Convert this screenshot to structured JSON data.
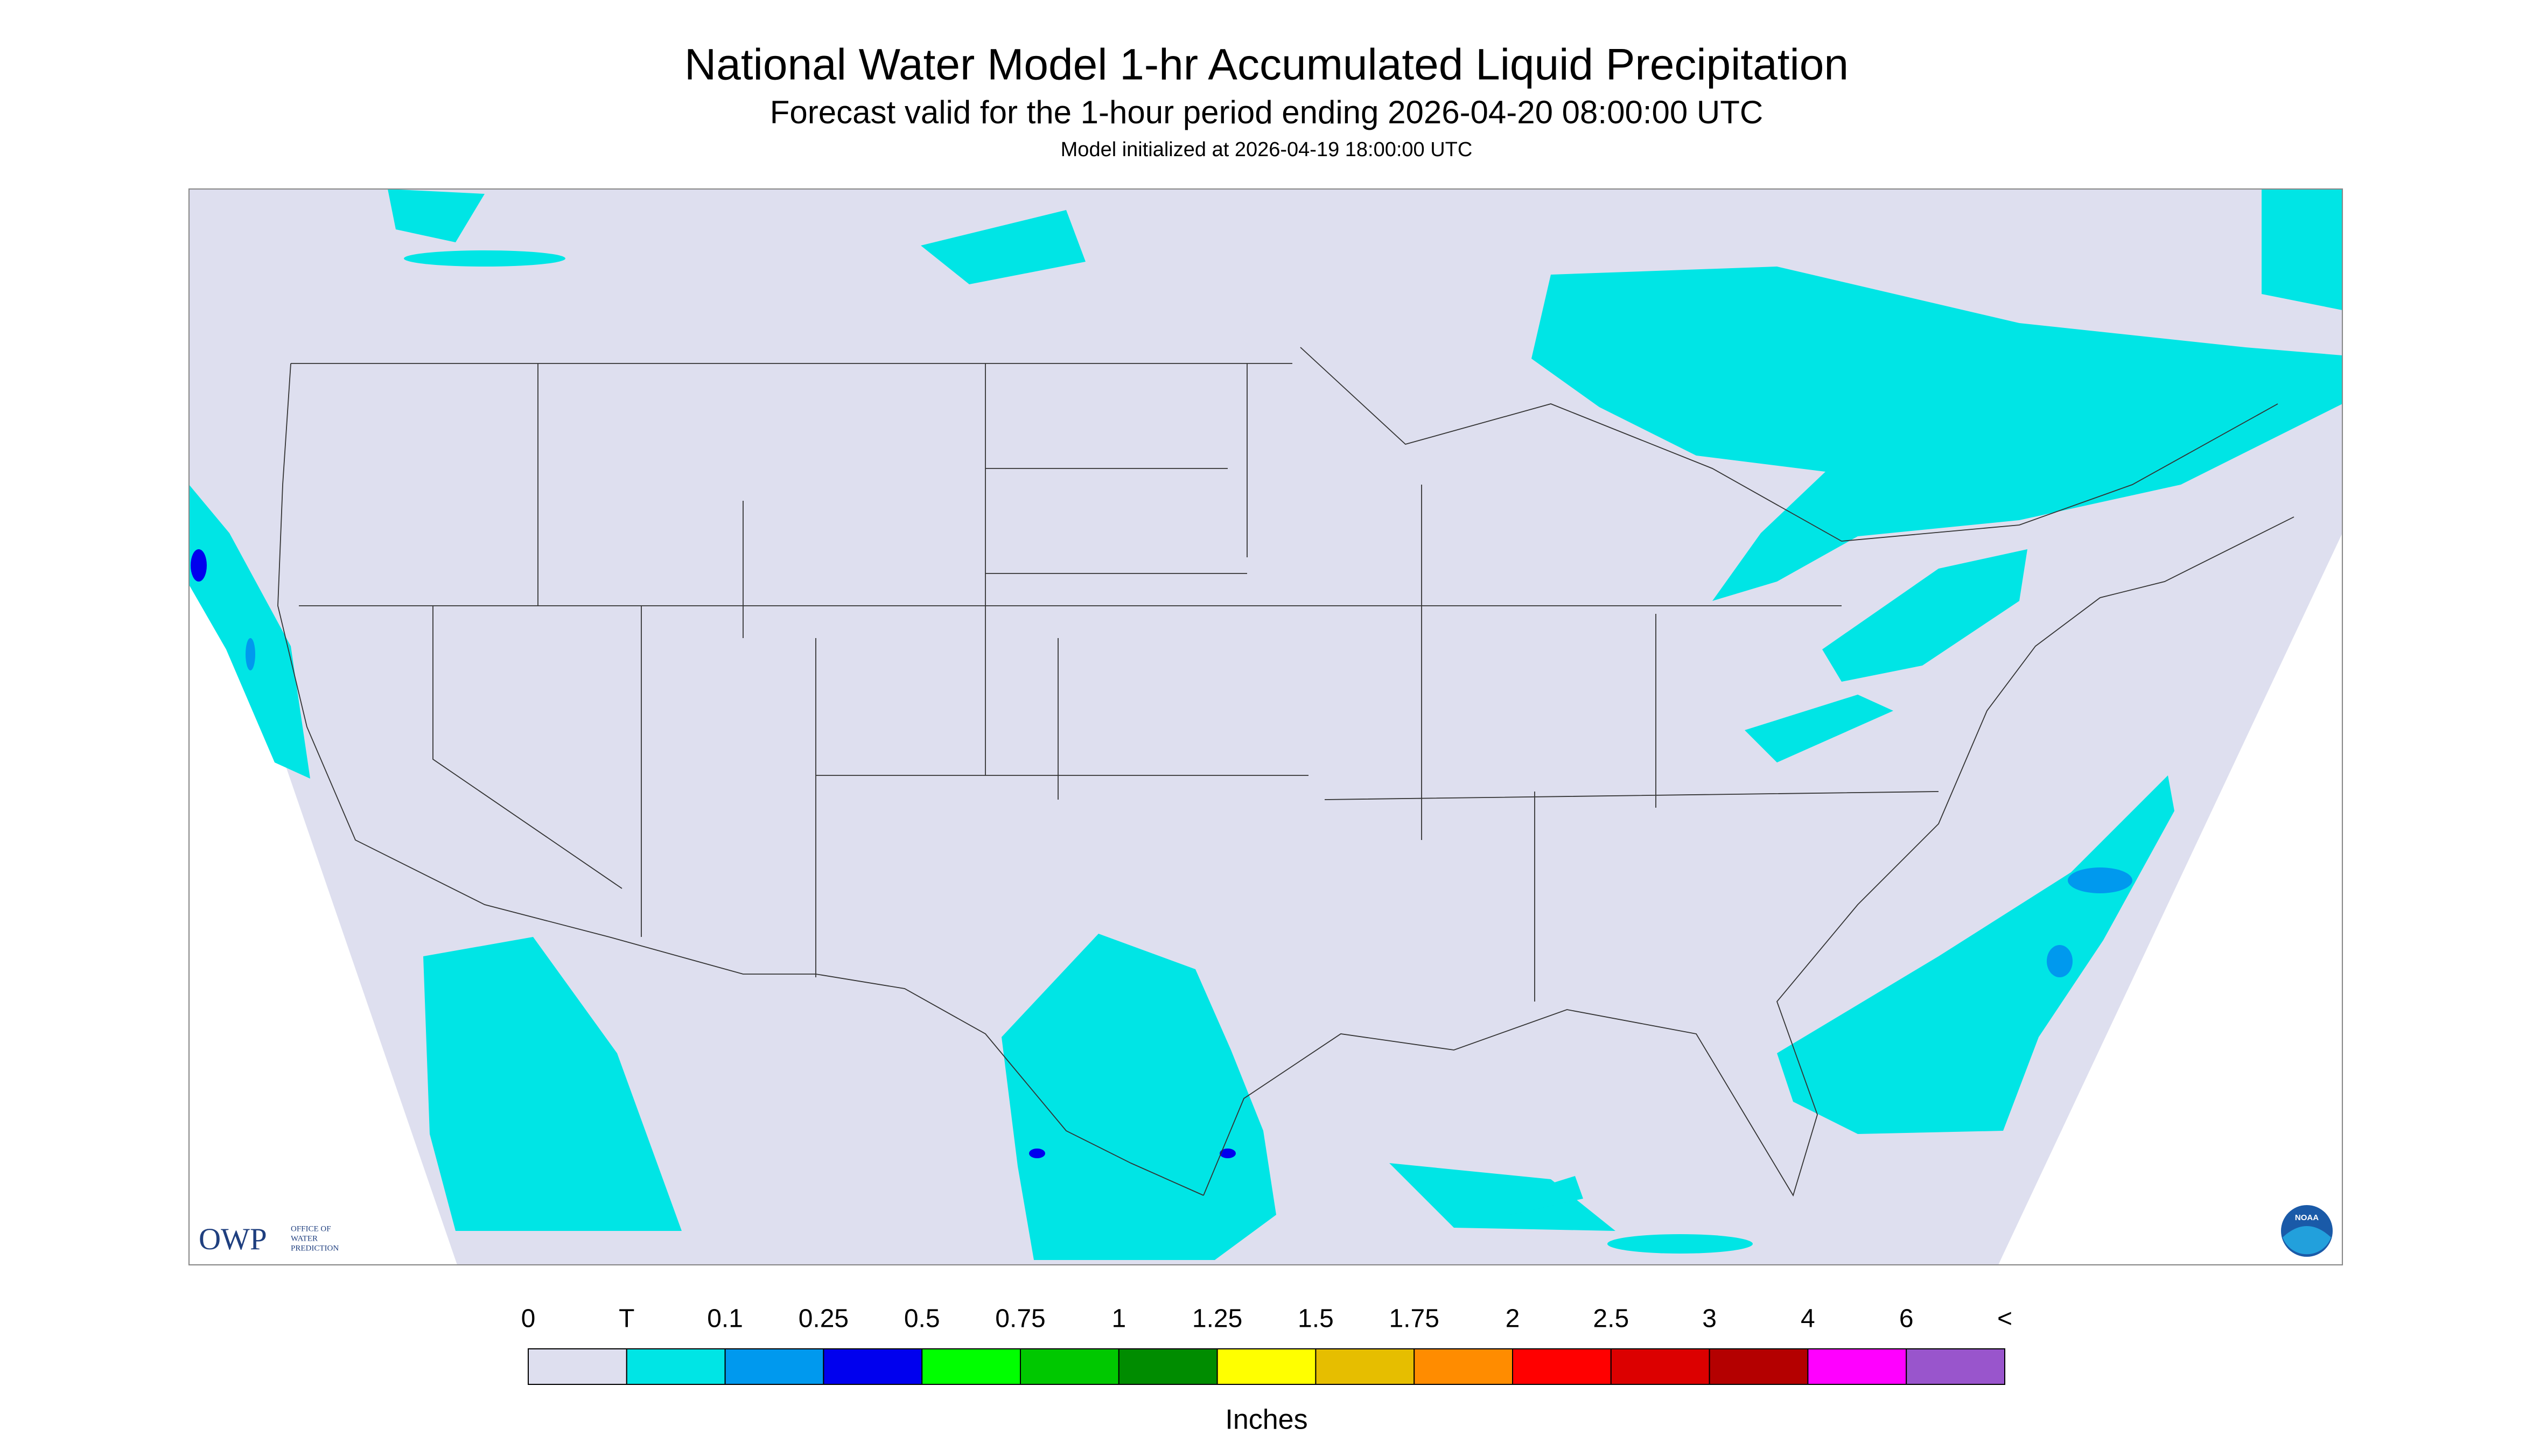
{
  "header": {
    "title": "National Water Model 1-hr Accumulated Liquid Precipitation",
    "subtitle": "Forecast valid for the 1-hour period ending 2026-04-20 08:00:00 UTC",
    "init": "Model initialized at 2026-04-19 18:00:00 UTC"
  },
  "legend": {
    "labels": [
      0,
      "T",
      0.1,
      0.25,
      0.5,
      0.75,
      1,
      1.25,
      1.5,
      1.75,
      2,
      2.5,
      3,
      4,
      6,
      "<"
    ],
    "colors": [
      "#dedfef",
      "#00e5e5",
      "#0099ee",
      "#0000ee",
      "#00ff00",
      "#00c800",
      "#008c00",
      "#ffff00",
      "#e6be00",
      "#ff8c00",
      "#ff0000",
      "#dc0000",
      "#b40000",
      "#ff00ff",
      "#9955cc"
    ],
    "units": "Inches"
  },
  "logos": {
    "owp": "OWP",
    "owp_name": [
      "OFFICE OF",
      "WATER",
      "PREDICTION"
    ],
    "noaa": "NOAA"
  }
}
